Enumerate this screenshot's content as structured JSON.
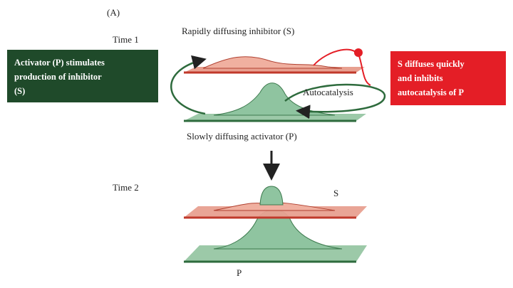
{
  "panel_label": "(A)",
  "time1": {
    "label": "Time 1",
    "top_label": "Rapidly diffusing inhibitor (S)",
    "left_box": {
      "lines": [
        "Activator (P) stimulates",
        "production of inhibitor",
        "(S)"
      ]
    },
    "right_box": {
      "lines": [
        "S diffuses quickly",
        "and inhibits",
        "autocatalysis of P"
      ]
    },
    "autocatalysis": "Autocatalysis",
    "bottom_label": "Slowly diffusing activator (P)"
  },
  "time2": {
    "label": "Time 2",
    "s_label": "S",
    "p_label": "P"
  }
}
